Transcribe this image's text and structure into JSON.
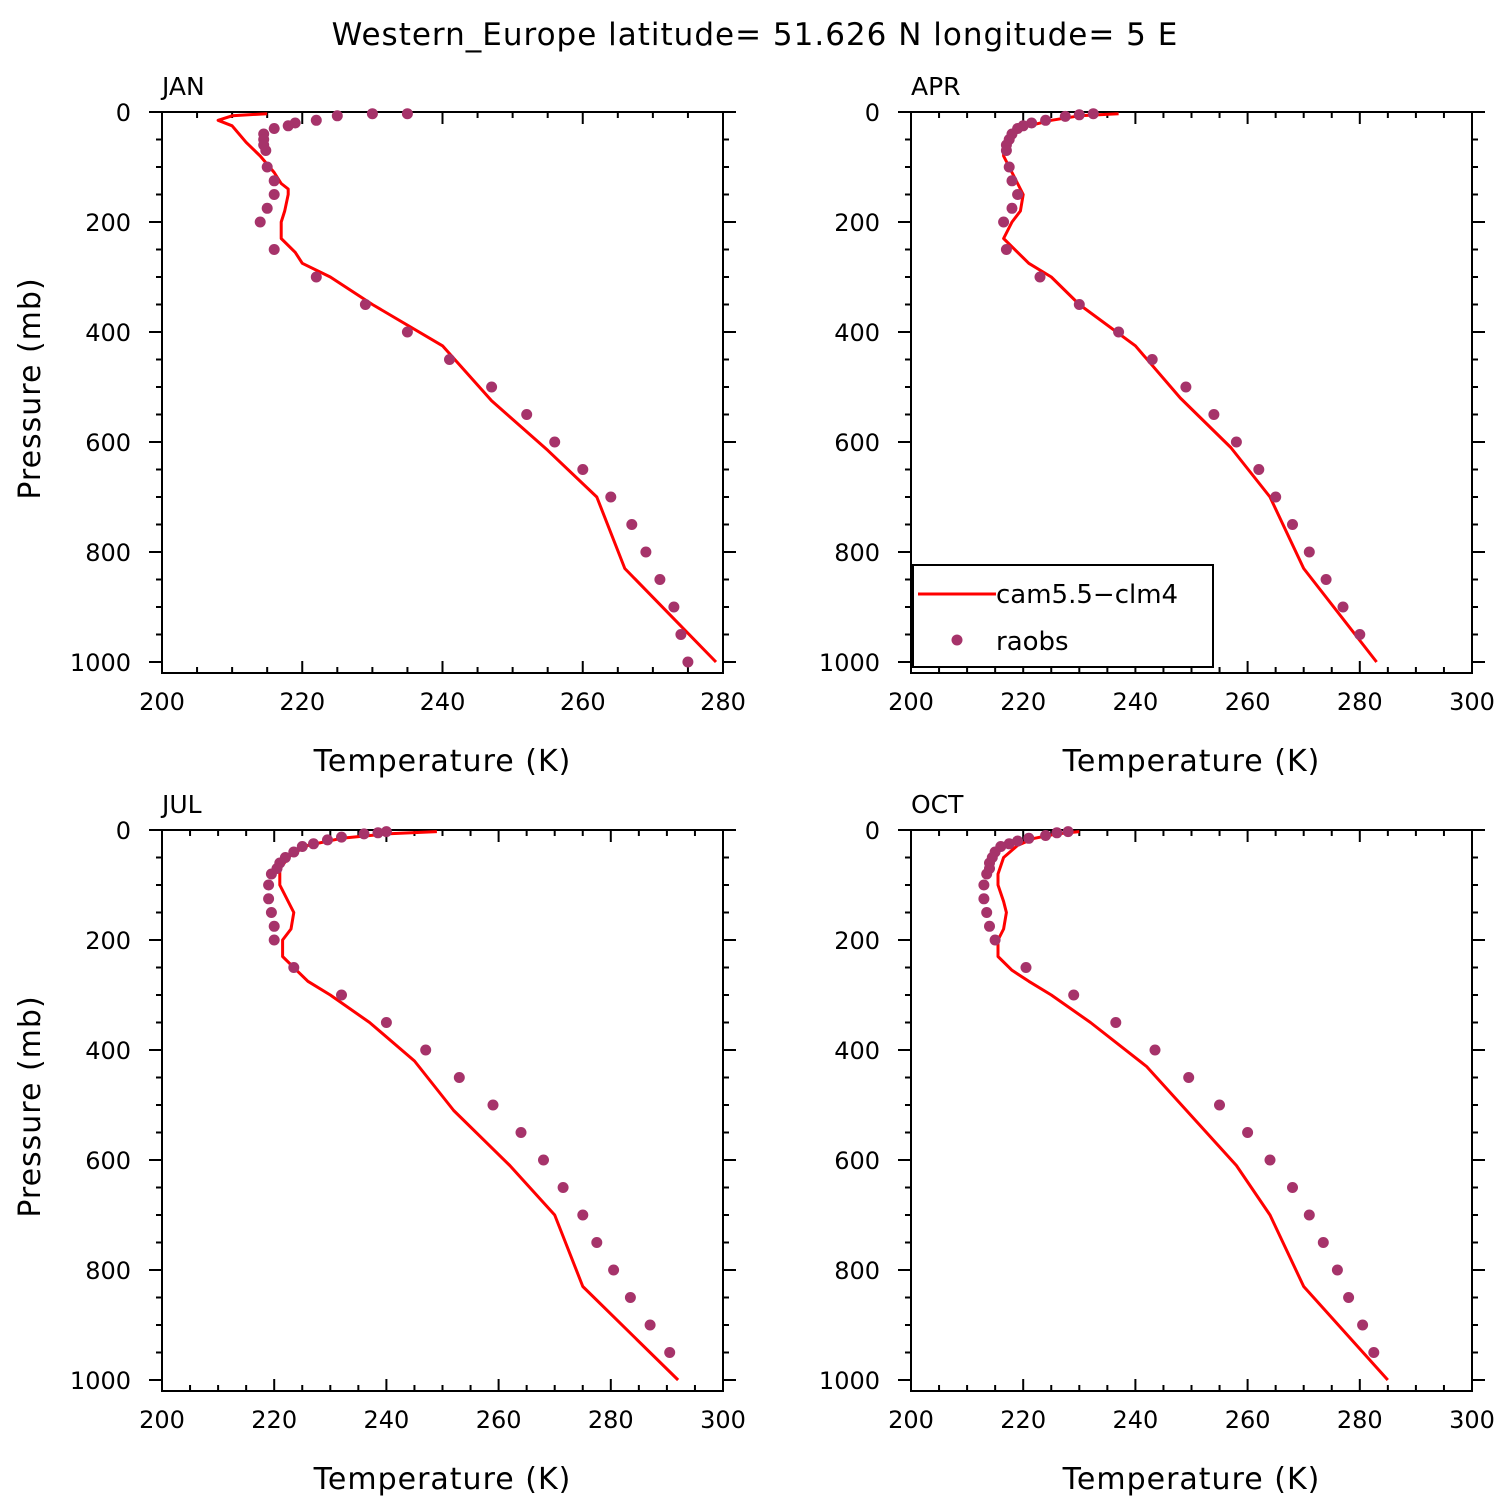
{
  "title": "Western_Europe  latitude= 51.626 N longitude= 5 E",
  "colors": {
    "model": "#ff0000",
    "obs": "#a6336a",
    "axis": "#000000"
  },
  "legend": {
    "model_label": "cam5.5−clm4",
    "obs_label": "raobs",
    "placement": "inside APR panel, lower-left"
  },
  "chart_data": [
    {
      "type": "line",
      "panel": "JAN",
      "xlabel": "Temperature (K)",
      "ylabel": "Pressure (mb)",
      "xlim": [
        200,
        280
      ],
      "ylim": [
        1020,
        0
      ],
      "xticks": [
        200,
        220,
        240,
        260,
        280
      ],
      "yticks": [
        0,
        200,
        400,
        600,
        800,
        1000
      ],
      "series": [
        {
          "name": "cam5.5−clm4",
          "style": "line",
          "points": [
            [
              215,
              3
            ],
            [
              210,
              7
            ],
            [
              208,
              15
            ],
            [
              210,
              25
            ],
            [
              212,
              55
            ],
            [
              214,
              80
            ],
            [
              216,
              110
            ],
            [
              217,
              130
            ],
            [
              218,
              140
            ],
            [
              218,
              150
            ],
            [
              217.5,
              180
            ],
            [
              217,
              200
            ],
            [
              217,
              230
            ],
            [
              219,
              255
            ],
            [
              220,
              275
            ],
            [
              224,
              300
            ],
            [
              230,
              350
            ],
            [
              240,
              425
            ],
            [
              247,
              525
            ],
            [
              255,
              615
            ],
            [
              262,
              700
            ],
            [
              266,
              830
            ],
            [
              279,
              1000
            ]
          ]
        },
        {
          "name": "raobs",
          "style": "points",
          "points": [
            [
              235,
              3
            ],
            [
              230,
              3
            ],
            [
              225,
              7
            ],
            [
              222,
              15
            ],
            [
              219,
              20
            ],
            [
              218,
              25
            ],
            [
              216,
              30
            ],
            [
              214.5,
              40
            ],
            [
              214.5,
              50
            ],
            [
              214.5,
              60
            ],
            [
              214.8,
              70
            ],
            [
              215,
              100
            ],
            [
              216,
              125
            ],
            [
              216,
              150
            ],
            [
              215,
              175
            ],
            [
              214,
              200
            ],
            [
              216,
              250
            ],
            [
              222,
              300
            ],
            [
              229,
              350
            ],
            [
              235,
              400
            ],
            [
              241,
              450
            ],
            [
              247,
              500
            ],
            [
              252,
              550
            ],
            [
              256,
              600
            ],
            [
              260,
              650
            ],
            [
              264,
              700
            ],
            [
              267,
              750
            ],
            [
              269,
              800
            ],
            [
              271,
              850
            ],
            [
              273,
              900
            ],
            [
              274,
              950
            ],
            [
              275,
              1000
            ]
          ]
        }
      ]
    },
    {
      "type": "line",
      "panel": "APR",
      "xlabel": "Temperature (K)",
      "ylabel": "",
      "xlim": [
        200,
        300
      ],
      "ylim": [
        1020,
        0
      ],
      "xticks": [
        200,
        220,
        240,
        260,
        280,
        300
      ],
      "yticks": [
        0,
        200,
        400,
        600,
        800,
        1000
      ],
      "series": [
        {
          "name": "cam5.5−clm4",
          "style": "line",
          "points": [
            [
              237,
              3
            ],
            [
              230,
              7
            ],
            [
              225,
              15
            ],
            [
              221,
              25
            ],
            [
              218,
              40
            ],
            [
              216.5,
              60
            ],
            [
              216.5,
              80
            ],
            [
              217.5,
              100
            ],
            [
              219,
              130
            ],
            [
              220,
              150
            ],
            [
              219.5,
              180
            ],
            [
              218,
              200
            ],
            [
              216.5,
              230
            ],
            [
              219,
              255
            ],
            [
              221,
              275
            ],
            [
              225,
              300
            ],
            [
              230,
              350
            ],
            [
              240,
              425
            ],
            [
              248,
              520
            ],
            [
              257,
              610
            ],
            [
              264,
              700
            ],
            [
              270,
              830
            ],
            [
              283,
              1000
            ]
          ]
        },
        {
          "name": "raobs",
          "style": "points",
          "points": [
            [
              232.5,
              3
            ],
            [
              230,
              5
            ],
            [
              227.5,
              8
            ],
            [
              224,
              15
            ],
            [
              221.5,
              20
            ],
            [
              220,
              25
            ],
            [
              219,
              30
            ],
            [
              218,
              40
            ],
            [
              217.5,
              50
            ],
            [
              217,
              60
            ],
            [
              217,
              70
            ],
            [
              217.5,
              100
            ],
            [
              218,
              125
            ],
            [
              219,
              150
            ],
            [
              218,
              175
            ],
            [
              216.5,
              200
            ],
            [
              217,
              250
            ],
            [
              223,
              300
            ],
            [
              230,
              350
            ],
            [
              237,
              400
            ],
            [
              243,
              450
            ],
            [
              249,
              500
            ],
            [
              254,
              550
            ],
            [
              258,
              600
            ],
            [
              262,
              650
            ],
            [
              265,
              700
            ],
            [
              268,
              750
            ],
            [
              271,
              800
            ],
            [
              274,
              850
            ],
            [
              277,
              900
            ],
            [
              280,
              950
            ]
          ]
        }
      ]
    },
    {
      "type": "line",
      "panel": "JUL",
      "xlabel": "Temperature (K)",
      "ylabel": "Pressure (mb)",
      "xlim": [
        200,
        300
      ],
      "ylim": [
        1020,
        0
      ],
      "xticks": [
        200,
        220,
        240,
        260,
        280,
        300
      ],
      "yticks": [
        0,
        200,
        400,
        600,
        800,
        1000
      ],
      "series": [
        {
          "name": "cam5.5−clm4",
          "style": "line",
          "points": [
            [
              249,
              3
            ],
            [
              240,
              7
            ],
            [
              232,
              15
            ],
            [
              226,
              28
            ],
            [
              223,
              45
            ],
            [
              221,
              70
            ],
            [
              221,
              100
            ],
            [
              222.5,
              130
            ],
            [
              223.5,
              150
            ],
            [
              223,
              180
            ],
            [
              221.5,
              200
            ],
            [
              221.5,
              230
            ],
            [
              224,
              255
            ],
            [
              226,
              275
            ],
            [
              230,
              300
            ],
            [
              237,
              350
            ],
            [
              245,
              420
            ],
            [
              252,
              510
            ],
            [
              262,
              610
            ],
            [
              270,
              700
            ],
            [
              275,
              830
            ],
            [
              292,
              1000
            ]
          ]
        },
        {
          "name": "raobs",
          "style": "points",
          "points": [
            [
              240,
              3
            ],
            [
              238.5,
              5
            ],
            [
              236,
              7
            ],
            [
              232,
              13
            ],
            [
              229.5,
              18
            ],
            [
              227,
              25
            ],
            [
              225,
              30
            ],
            [
              223.5,
              40
            ],
            [
              222,
              50
            ],
            [
              221,
              60
            ],
            [
              220.5,
              70
            ],
            [
              219.5,
              80
            ],
            [
              219,
              100
            ],
            [
              219,
              125
            ],
            [
              219.5,
              150
            ],
            [
              220,
              175
            ],
            [
              220,
              200
            ],
            [
              223.5,
              250
            ],
            [
              232,
              300
            ],
            [
              240,
              350
            ],
            [
              247,
              400
            ],
            [
              253,
              450
            ],
            [
              259,
              500
            ],
            [
              264,
              550
            ],
            [
              268,
              600
            ],
            [
              271.5,
              650
            ],
            [
              275,
              700
            ],
            [
              277.5,
              750
            ],
            [
              280.5,
              800
            ],
            [
              283.5,
              850
            ],
            [
              287,
              900
            ],
            [
              290.5,
              950
            ]
          ]
        }
      ]
    },
    {
      "type": "line",
      "panel": "OCT",
      "xlabel": "Temperature (K)",
      "ylabel": "",
      "xlim": [
        200,
        300
      ],
      "ylim": [
        1020,
        0
      ],
      "xticks": [
        200,
        220,
        240,
        260,
        280,
        300
      ],
      "yticks": [
        0,
        200,
        400,
        600,
        800,
        1000
      ],
      "series": [
        {
          "name": "cam5.5−clm4",
          "style": "line",
          "points": [
            [
              230,
              3
            ],
            [
              226,
              7
            ],
            [
              222,
              15
            ],
            [
              219,
              28
            ],
            [
              216.5,
              50
            ],
            [
              215.5,
              80
            ],
            [
              215.5,
              100
            ],
            [
              216.5,
              130
            ],
            [
              217,
              150
            ],
            [
              216.5,
              180
            ],
            [
              215.5,
              200
            ],
            [
              215.5,
              230
            ],
            [
              218,
              255
            ],
            [
              221,
              275
            ],
            [
              225,
              300
            ],
            [
              232,
              350
            ],
            [
              242,
              430
            ],
            [
              250,
              520
            ],
            [
              258,
              610
            ],
            [
              264,
              700
            ],
            [
              270,
              830
            ],
            [
              285,
              1000
            ]
          ]
        },
        {
          "name": "raobs",
          "style": "points",
          "points": [
            [
              228,
              3
            ],
            [
              226,
              5
            ],
            [
              224,
              10
            ],
            [
              221,
              15
            ],
            [
              219,
              20
            ],
            [
              217.5,
              25
            ],
            [
              216,
              30
            ],
            [
              215,
              40
            ],
            [
              214.5,
              50
            ],
            [
              214,
              60
            ],
            [
              214,
              70
            ],
            [
              213.5,
              80
            ],
            [
              213,
              100
            ],
            [
              213,
              125
            ],
            [
              213.5,
              150
            ],
            [
              214,
              175
            ],
            [
              215,
              200
            ],
            [
              220.5,
              250
            ],
            [
              229,
              300
            ],
            [
              236.5,
              350
            ],
            [
              243.5,
              400
            ],
            [
              249.5,
              450
            ],
            [
              255,
              500
            ],
            [
              260,
              550
            ],
            [
              264,
              600
            ],
            [
              268,
              650
            ],
            [
              271,
              700
            ],
            [
              273.5,
              750
            ],
            [
              276,
              800
            ],
            [
              278,
              850
            ],
            [
              280.5,
              900
            ],
            [
              282.5,
              950
            ]
          ]
        }
      ]
    }
  ]
}
